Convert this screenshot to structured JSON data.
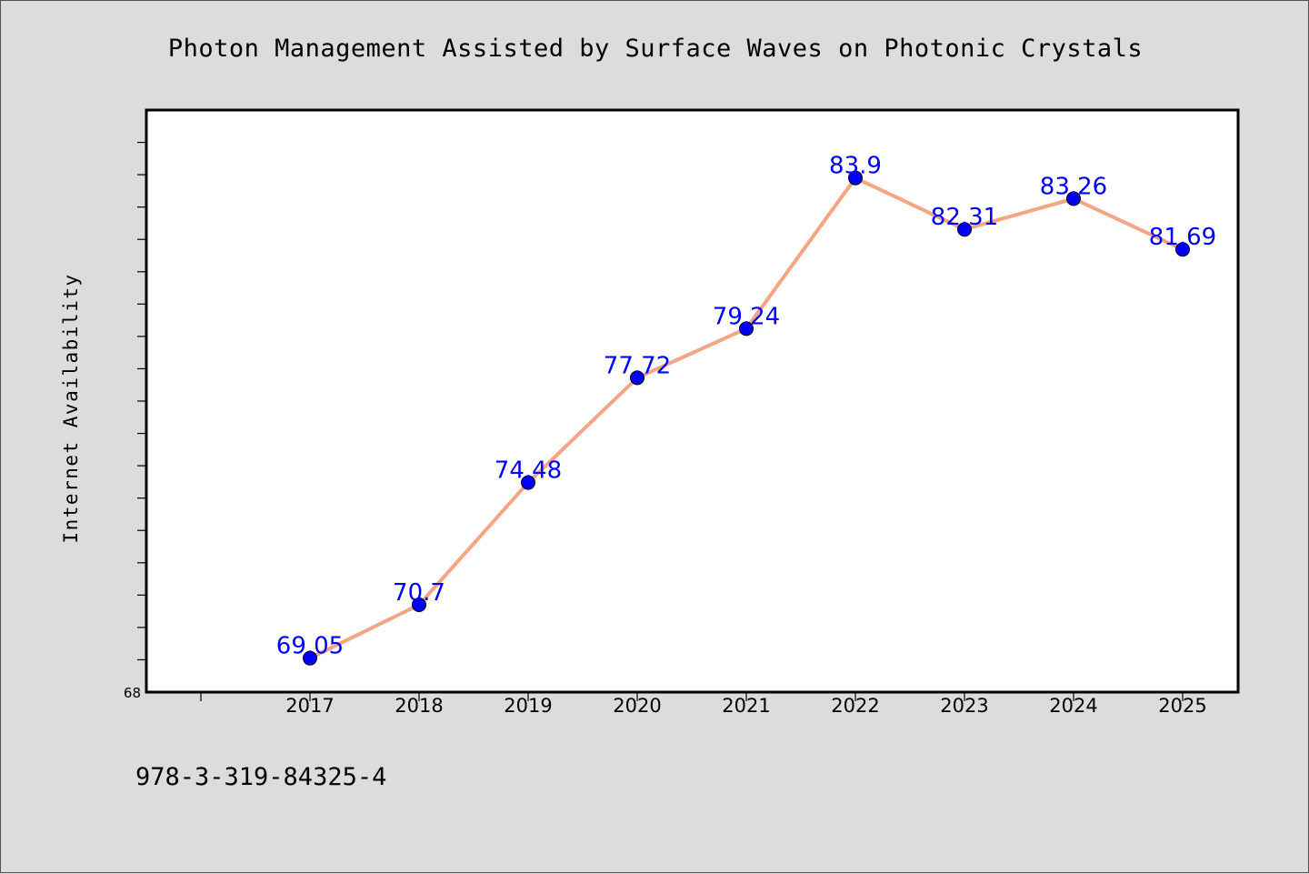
{
  "chart_data": {
    "type": "line",
    "title": "Photon Management Assisted by Surface Waves on Photonic Crystals",
    "xlabel": "",
    "ylabel": "Internet Availability",
    "categories": [
      "2017",
      "2018",
      "2019",
      "2020",
      "2021",
      "2022",
      "2023",
      "2024",
      "2025"
    ],
    "series": [
      {
        "values": [
          69.05,
          70.7,
          74.48,
          77.72,
          79.24,
          83.9,
          82.31,
          83.26,
          81.69
        ],
        "labels": [
          "69.05",
          "70.7",
          "74.48",
          "77.72",
          "79.24",
          "83.9",
          "82.31",
          "83.26",
          "81.69"
        ]
      }
    ],
    "y_tick_labels": [
      "68"
    ],
    "ylim": [
      68,
      86
    ],
    "grid": false,
    "legend": "none",
    "colors": {
      "line": "#f4a582",
      "marker": "#0000ff",
      "label": "#0000ff",
      "background": "#dcdcdc",
      "plot_area": "#ffffff"
    }
  },
  "footer": {
    "isbn": "978-3-319-84325-4"
  }
}
